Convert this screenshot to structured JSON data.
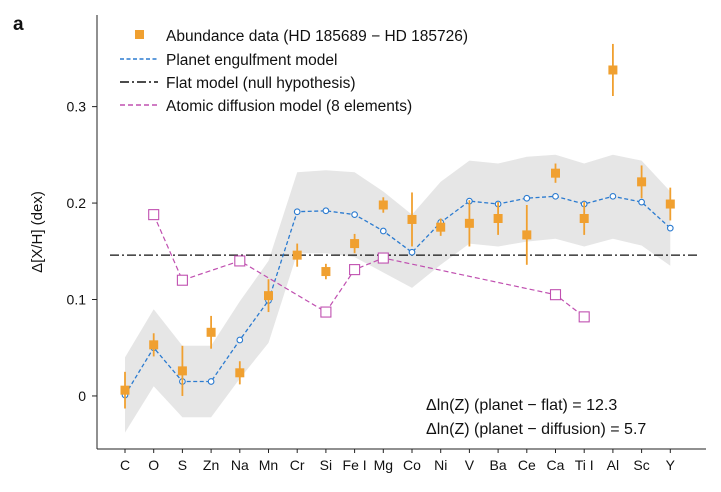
{
  "chart_data": {
    "type": "scatter",
    "panel_label": "a",
    "ylabel": "Δ[X/H] (dex)",
    "xlabel": "",
    "ylim": [
      -0.055,
      0.395
    ],
    "yticks": [
      0,
      0.1,
      0.2,
      0.3
    ],
    "ytick_labels": [
      "0",
      "0.1",
      "0.2",
      "0.3"
    ],
    "categories": [
      "C",
      "O",
      "S",
      "Zn",
      "Na",
      "Mn",
      "Cr",
      "Si",
      "Fe I",
      "Mg",
      "Co",
      "Ni",
      "V",
      "Ba",
      "Ce",
      "Ca",
      "Ti I",
      "Al",
      "Sc",
      "Y"
    ],
    "legend": [
      {
        "label": "Abundance data (HD 185689 − HD 185726)",
        "series": "abundance"
      },
      {
        "label": "Planet engulfment model",
        "series": "planet"
      },
      {
        "label": "Flat model (null hypothesis)",
        "series": "flat"
      },
      {
        "label": "Atomic diffusion model (8 elements)",
        "series": "diffusion"
      }
    ],
    "series": [
      {
        "name": "Abundance data (HD 185689 − HD 185726)",
        "key": "abundance",
        "color": "#f0a030",
        "marker": "square",
        "values": [
          0.006,
          0.053,
          0.026,
          0.066,
          0.024,
          0.104,
          0.146,
          0.129,
          0.158,
          0.198,
          0.183,
          0.175,
          0.179,
          0.184,
          0.167,
          0.231,
          0.184,
          0.338,
          0.222,
          0.199
        ],
        "errors": [
          0.019,
          0.012,
          0.026,
          0.017,
          0.012,
          0.017,
          0.012,
          0.008,
          0.01,
          0.008,
          0.028,
          0.009,
          0.024,
          0.017,
          0.031,
          0.01,
          0.017,
          0.027,
          0.017,
          0.017
        ]
      },
      {
        "name": "Planet engulfment model",
        "key": "planet",
        "color": "#2b7bd0",
        "values": [
          0.001,
          0.05,
          0.015,
          0.015,
          0.058,
          0.099,
          0.191,
          0.192,
          0.188,
          0.171,
          0.149,
          0.18,
          0.202,
          0.199,
          0.205,
          0.207,
          0.199,
          0.207,
          0.201,
          0.174
        ],
        "band_lower": [
          -0.038,
          0.01,
          -0.022,
          -0.022,
          0.018,
          0.055,
          0.148,
          0.148,
          0.144,
          0.128,
          0.112,
          0.136,
          0.158,
          0.155,
          0.16,
          0.163,
          0.155,
          0.163,
          0.156,
          0.135
        ],
        "band_upper": [
          0.04,
          0.09,
          0.052,
          0.052,
          0.098,
          0.14,
          0.232,
          0.234,
          0.232,
          0.212,
          0.188,
          0.222,
          0.244,
          0.241,
          0.248,
          0.25,
          0.241,
          0.25,
          0.244,
          0.212
        ],
        "band_color": "#e6e6e6"
      },
      {
        "name": "Flat model (null hypothesis)",
        "key": "flat",
        "color": "#111111",
        "value": 0.146
      },
      {
        "name": "Atomic diffusion model (8 elements)",
        "key": "diffusion",
        "color": "#c050b0",
        "marker": "open-square",
        "points": [
          {
            "category": "O",
            "value": 0.188
          },
          {
            "category": "S",
            "value": 0.12
          },
          {
            "category": "Na",
            "value": 0.14
          },
          {
            "category": "Si",
            "value": 0.087
          },
          {
            "category": "Fe I",
            "value": 0.131
          },
          {
            "category": "Mg",
            "value": 0.143
          },
          {
            "category": "Ca",
            "value": 0.105
          },
          {
            "category": "Ti I",
            "value": 0.082
          }
        ]
      }
    ],
    "annotations": [
      "Δln(Z) (planet − flat) = 12.3",
      "Δln(Z) (planet − diffusion) = 5.7"
    ]
  }
}
